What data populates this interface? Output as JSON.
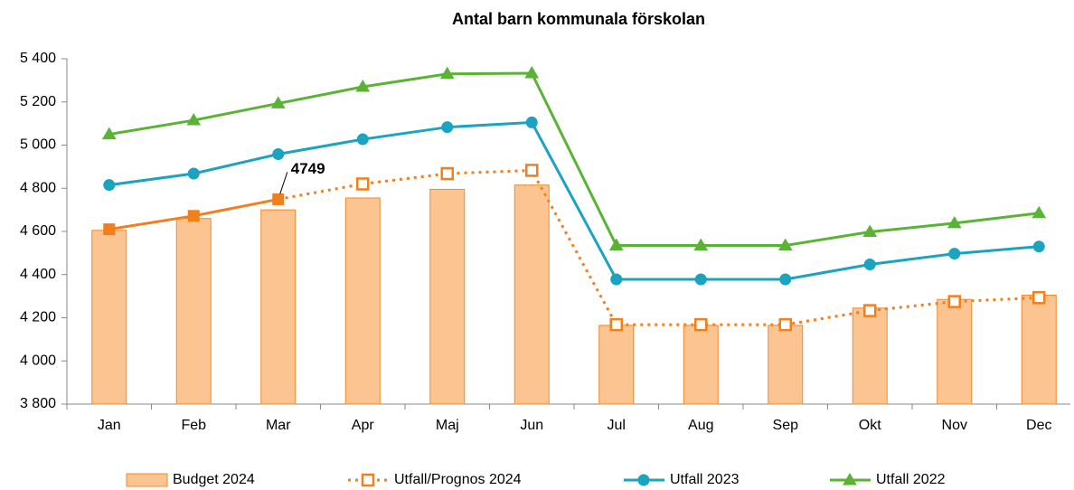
{
  "chart_data": {
    "type": "bar_line",
    "title": "Antal barn kommunala förskolan",
    "categories": [
      "Jan",
      "Feb",
      "Mar",
      "Apr",
      "Maj",
      "Jun",
      "Jul",
      "Aug",
      "Sep",
      "Okt",
      "Nov",
      "Dec"
    ],
    "series": [
      {
        "name": "Budget 2024",
        "type": "bar",
        "color": "#fcc490",
        "values": [
          4605,
          4660,
          4700,
          4755,
          4795,
          4815,
          4165,
          4165,
          4165,
          4245,
          4285,
          4305
        ]
      },
      {
        "name": "Utfall/Prognos 2024",
        "type": "line",
        "marker": "square",
        "dashed": true,
        "actual_through": "Mar",
        "color": "#f07f1c",
        "values": [
          4610,
          4672,
          4749,
          4820,
          4868,
          4883,
          4168,
          4168,
          4168,
          4233,
          4275,
          4293
        ]
      },
      {
        "name": "Utfall 2023",
        "type": "line",
        "marker": "circle",
        "color": "#1ba3bf",
        "values": [
          4815,
          4868,
          4958,
          5027,
          5083,
          5105,
          4378,
          4378,
          4378,
          4447,
          4497,
          4530
        ]
      },
      {
        "name": "Utfall 2022",
        "type": "line",
        "marker": "triangle",
        "color": "#5ab334",
        "values": [
          5050,
          5115,
          5193,
          5270,
          5330,
          5333,
          4535,
          4535,
          4535,
          4598,
          4638,
          4685
        ]
      }
    ],
    "annotations": [
      {
        "text": "4749",
        "category": "Mar",
        "series": 1
      }
    ],
    "ylim": [
      3800,
      5400
    ],
    "yticks": [
      {
        "value": 3800,
        "label": "3 800"
      },
      {
        "value": 4000,
        "label": "4 000"
      },
      {
        "value": 4200,
        "label": "4 200"
      },
      {
        "value": 4400,
        "label": "4 400"
      },
      {
        "value": 4600,
        "label": "4 600"
      },
      {
        "value": 4800,
        "label": "4 800"
      },
      {
        "value": 5000,
        "label": "5 000"
      },
      {
        "value": 5200,
        "label": "5 200"
      },
      {
        "value": 5400,
        "label": "5 400"
      }
    ],
    "legend": "bottom"
  }
}
